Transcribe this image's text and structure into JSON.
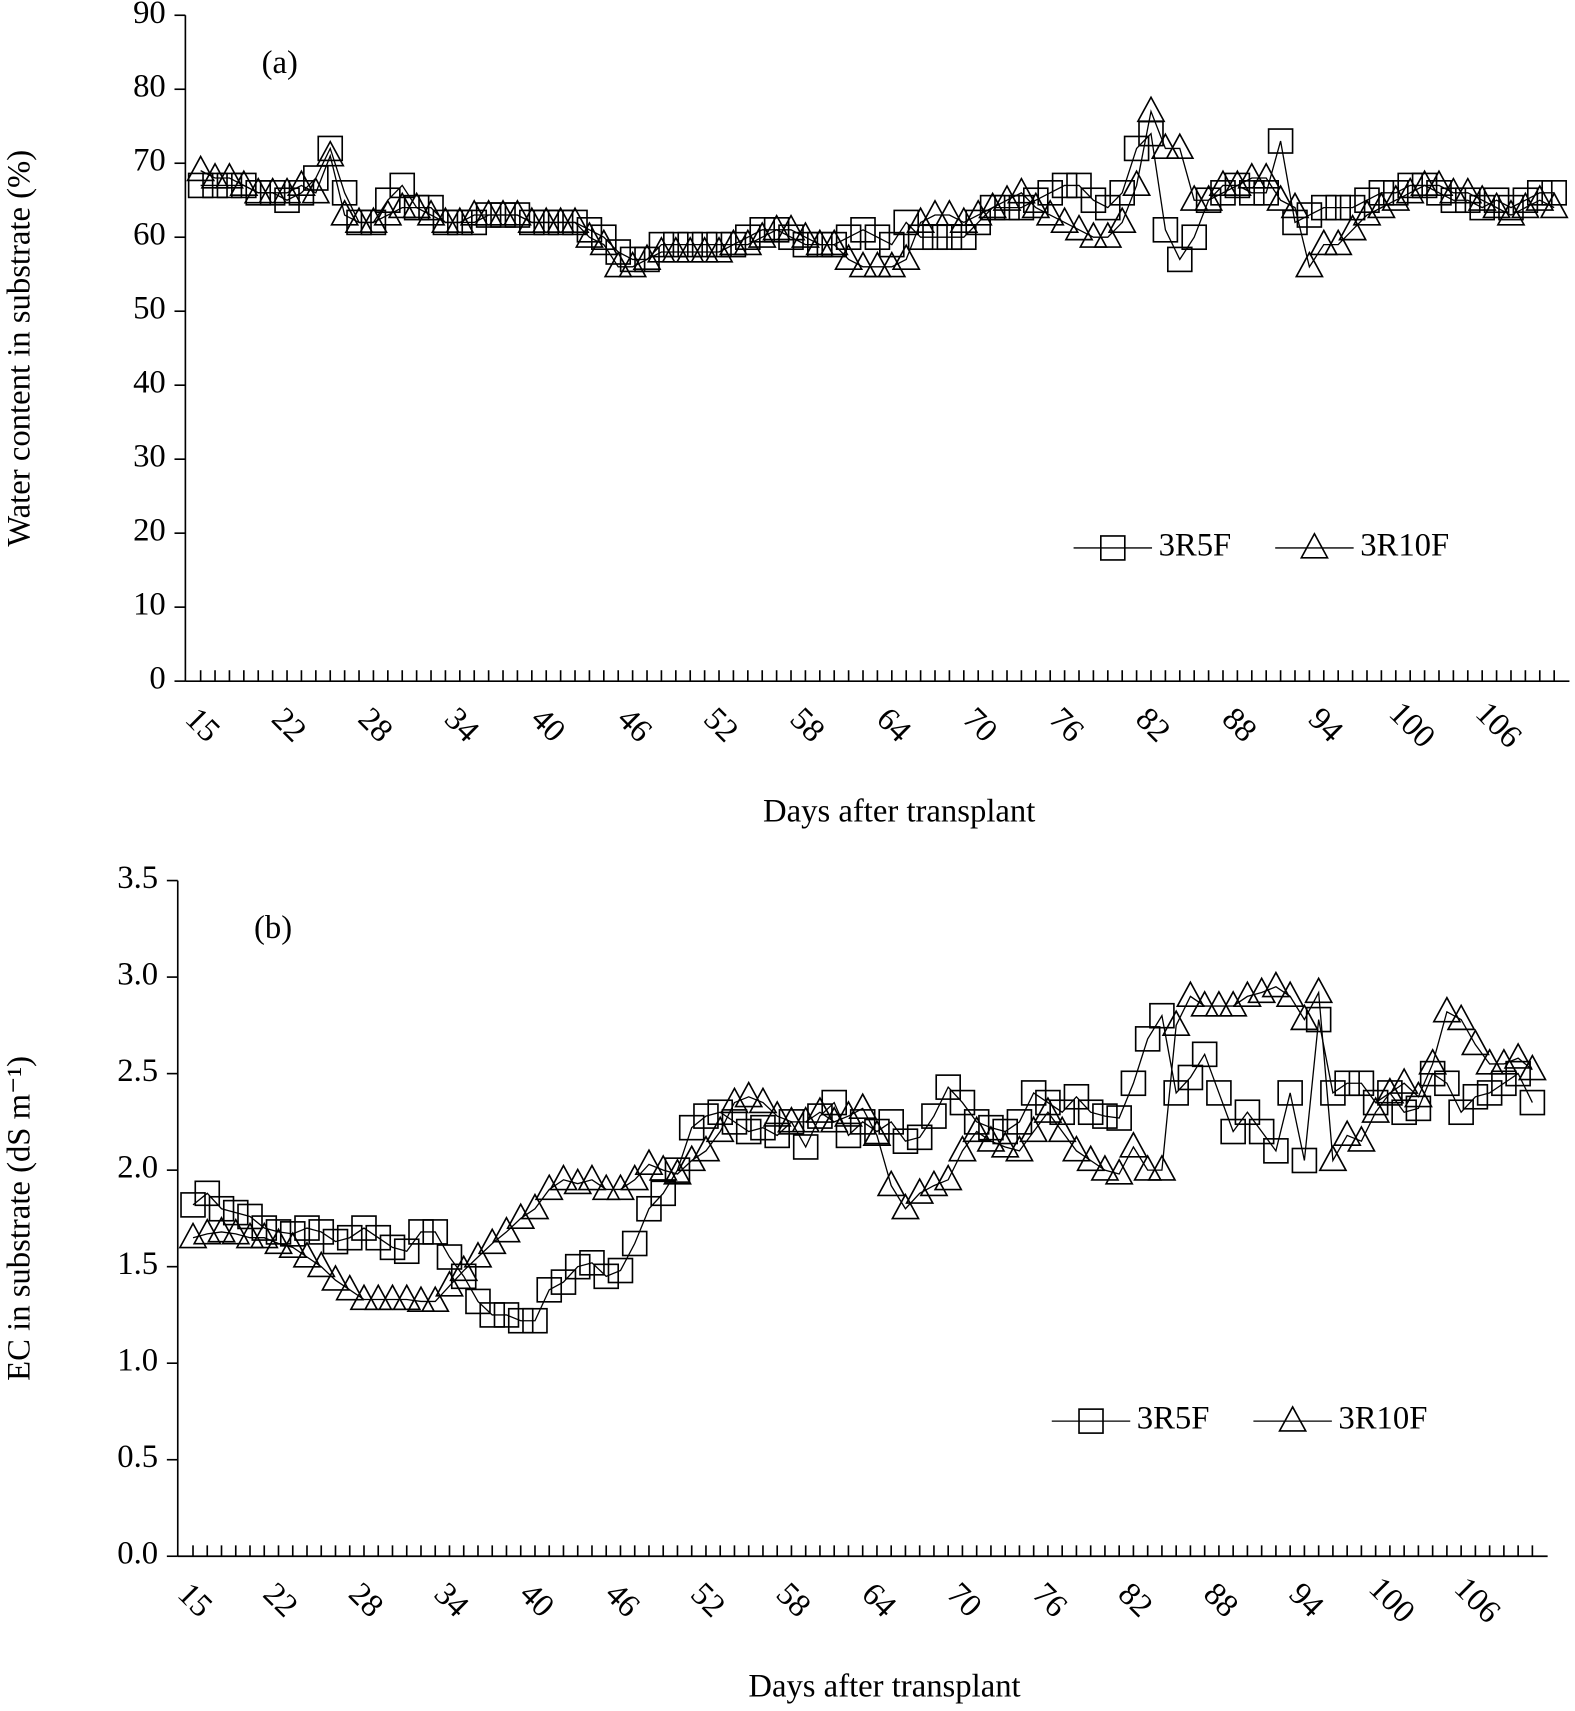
{
  "chart_data": [
    {
      "type": "line",
      "annotation": "(a)",
      "x_label": "Days after transplant",
      "y_label": "Water content in substrate (%)",
      "categories": [
        "15",
        null,
        null,
        null,
        null,
        null,
        "22",
        null,
        null,
        null,
        null,
        null,
        "28",
        null,
        null,
        null,
        null,
        null,
        "34",
        null,
        null,
        null,
        null,
        null,
        "40",
        null,
        null,
        null,
        null,
        null,
        "46",
        null,
        null,
        null,
        null,
        null,
        "52",
        null,
        null,
        null,
        null,
        null,
        "58",
        null,
        null,
        null,
        null,
        null,
        "64",
        null,
        null,
        null,
        null,
        null,
        "70",
        null,
        null,
        null,
        null,
        null,
        "76",
        null,
        null,
        null,
        null,
        null,
        "82",
        null,
        null,
        null,
        null,
        null,
        "88",
        null,
        null,
        null,
        null,
        null,
        "94",
        null,
        null,
        null,
        null,
        null,
        "100",
        null,
        null,
        null,
        null,
        null,
        "106",
        null,
        null,
        null,
        null
      ],
      "ylim": [
        0,
        90
      ],
      "yticks": [
        0,
        10,
        20,
        30,
        40,
        50,
        60,
        70,
        80,
        90
      ],
      "legend": "lower right",
      "series": [
        {
          "name": "3R5F",
          "color": "#000000",
          "marker": "square",
          "values": [
            67,
            67,
            67,
            67,
            66,
            66,
            65,
            66,
            68,
            72,
            66,
            62,
            62,
            65,
            67,
            64,
            64,
            62,
            62,
            62,
            63,
            63,
            63,
            62,
            62,
            62,
            62,
            61,
            60,
            58,
            57,
            57,
            59,
            59,
            59,
            59,
            59,
            59,
            60,
            61,
            61,
            60,
            59,
            59,
            59,
            60,
            61,
            60,
            59,
            62,
            60,
            60,
            60,
            60,
            62,
            64,
            64,
            64,
            65,
            66,
            67,
            67,
            65,
            64,
            66,
            72,
            74,
            61,
            57,
            60,
            65,
            66,
            67,
            66,
            66,
            73,
            62,
            63,
            64,
            64,
            64,
            65,
            66,
            66,
            67,
            67,
            66,
            65,
            65,
            64,
            65,
            64,
            65,
            66,
            66
          ]
        },
        {
          "name": "3R10F",
          "color": "#000000",
          "marker": "triangle",
          "values": [
            69,
            68,
            68,
            67,
            66,
            66,
            66,
            67,
            66,
            71,
            63,
            62,
            62,
            63,
            64,
            64,
            63,
            62,
            62,
            63,
            63,
            63,
            63,
            62,
            62,
            62,
            62,
            60,
            59,
            56,
            56,
            57,
            58,
            58,
            58,
            58,
            58,
            59,
            59,
            60,
            61,
            61,
            60,
            59,
            59,
            57,
            56,
            56,
            56,
            57,
            62,
            63,
            63,
            62,
            63,
            64,
            65,
            66,
            64,
            63,
            62,
            61,
            60,
            60,
            62,
            67,
            77,
            72,
            72,
            65,
            65,
            67,
            67,
            68,
            68,
            65,
            64,
            56,
            59,
            59,
            61,
            63,
            64,
            65,
            66,
            67,
            67,
            66,
            66,
            65,
            64,
            63,
            64,
            65,
            64
          ]
        }
      ]
    },
    {
      "type": "line",
      "annotation": "(b)",
      "x_label": "Days after transplant",
      "y_label": "EC in substrate (dS m⁻¹)",
      "categories": [
        "15",
        null,
        null,
        null,
        null,
        null,
        "22",
        null,
        null,
        null,
        null,
        null,
        "28",
        null,
        null,
        null,
        null,
        null,
        "34",
        null,
        null,
        null,
        null,
        null,
        "40",
        null,
        null,
        null,
        null,
        null,
        "46",
        null,
        null,
        null,
        null,
        null,
        "52",
        null,
        null,
        null,
        null,
        null,
        "58",
        null,
        null,
        null,
        null,
        null,
        "64",
        null,
        null,
        null,
        null,
        null,
        "70",
        null,
        null,
        null,
        null,
        null,
        "76",
        null,
        null,
        null,
        null,
        null,
        "82",
        null,
        null,
        null,
        null,
        null,
        "88",
        null,
        null,
        null,
        null,
        null,
        "94",
        null,
        null,
        null,
        null,
        null,
        "100",
        null,
        null,
        null,
        null,
        null,
        "106",
        null,
        null,
        null,
        null
      ],
      "ylim": [
        0,
        3.5
      ],
      "yticks": [
        {
          "value": 0,
          "label": "0.0"
        },
        0.5,
        {
          "value": 1,
          "label": "1.0"
        },
        1.5,
        {
          "value": 2,
          "label": "2.0"
        },
        2.5,
        {
          "value": 3,
          "label": "3.0"
        },
        3.5
      ],
      "legend": "lower right",
      "series": [
        {
          "name": "3R5F",
          "color": "#000000",
          "marker": "square",
          "values": [
            1.82,
            1.88,
            1.8,
            1.78,
            1.76,
            1.7,
            1.68,
            1.67,
            1.7,
            1.68,
            1.63,
            1.65,
            1.7,
            1.65,
            1.6,
            1.58,
            1.68,
            1.68,
            1.55,
            1.45,
            1.32,
            1.25,
            1.25,
            1.22,
            1.22,
            1.38,
            1.42,
            1.5,
            1.52,
            1.45,
            1.48,
            1.62,
            1.8,
            1.88,
            2.0,
            2.22,
            2.28,
            2.3,
            2.25,
            2.2,
            2.22,
            2.18,
            2.25,
            2.12,
            2.28,
            2.35,
            2.18,
            2.25,
            2.2,
            2.25,
            2.15,
            2.17,
            2.28,
            2.43,
            2.35,
            2.25,
            2.22,
            2.2,
            2.25,
            2.4,
            2.35,
            2.3,
            2.38,
            2.3,
            2.28,
            2.27,
            2.45,
            2.68,
            2.8,
            2.4,
            2.48,
            2.6,
            2.4,
            2.2,
            2.3,
            2.2,
            2.1,
            2.4,
            2.05,
            2.78,
            2.4,
            2.45,
            2.45,
            2.35,
            2.4,
            2.3,
            2.32,
            2.5,
            2.45,
            2.3,
            2.38,
            2.4,
            2.45,
            2.5,
            2.35
          ]
        },
        {
          "name": "3R10F",
          "color": "#000000",
          "marker": "triangle",
          "values": [
            1.65,
            1.67,
            1.68,
            1.67,
            1.65,
            1.65,
            1.62,
            1.6,
            1.55,
            1.5,
            1.43,
            1.38,
            1.33,
            1.33,
            1.33,
            1.33,
            1.32,
            1.32,
            1.4,
            1.48,
            1.55,
            1.62,
            1.68,
            1.75,
            1.8,
            1.9,
            1.95,
            1.93,
            1.95,
            1.9,
            1.9,
            1.95,
            2.03,
            2.0,
            1.98,
            2.05,
            2.1,
            2.2,
            2.35,
            2.38,
            2.35,
            2.28,
            2.25,
            2.25,
            2.3,
            2.25,
            2.28,
            2.32,
            2.18,
            1.92,
            1.8,
            1.88,
            1.92,
            1.95,
            2.1,
            2.2,
            2.15,
            2.12,
            2.1,
            2.2,
            2.3,
            2.2,
            2.1,
            2.05,
            2.0,
            1.98,
            2.12,
            2.0,
            2.0,
            2.75,
            2.9,
            2.85,
            2.85,
            2.85,
            2.9,
            2.92,
            2.95,
            2.9,
            2.78,
            2.92,
            2.05,
            2.18,
            2.15,
            2.3,
            2.4,
            2.45,
            2.38,
            2.55,
            2.82,
            2.78,
            2.65,
            2.55,
            2.55,
            2.58,
            2.52
          ]
        }
      ]
    }
  ]
}
